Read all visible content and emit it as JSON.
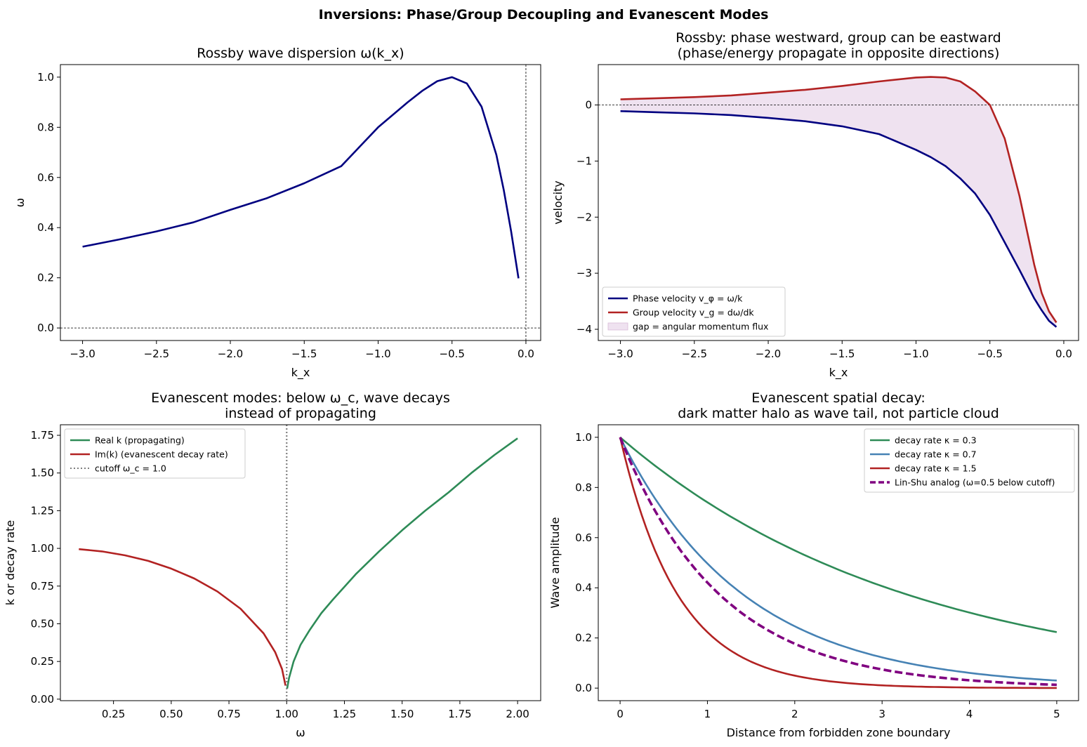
{
  "suptitle": "Inversions: Phase/Group Decoupling and Evanescent Modes",
  "chart_data": [
    {
      "type": "line",
      "title": "Rossby wave dispersion  ω(k_x)",
      "xlabel": "k_x",
      "ylabel": "ω",
      "xlim": [
        -3.15,
        0.1
      ],
      "ylim": [
        -0.05,
        1.05
      ],
      "xticks": [
        -3.0,
        -2.5,
        -2.0,
        -1.5,
        -1.0,
        -0.5,
        0.0
      ],
      "xtick_labels": [
        "−3.0",
        "−2.5",
        "−2.0",
        "−1.5",
        "−1.0",
        "−0.5",
        "0.0"
      ],
      "yticks": [
        0.0,
        0.2,
        0.4,
        0.6,
        0.8,
        1.0
      ],
      "ytick_labels": [
        "0.0",
        "0.2",
        "0.4",
        "0.6",
        "0.8",
        "1.0"
      ],
      "series": [
        {
          "name": "ω(k_x)",
          "color": "#000080",
          "x": [
            -3.0,
            -2.75,
            -2.5,
            -2.25,
            -2.0,
            -1.75,
            -1.5,
            -1.25,
            -1.0,
            -0.9,
            -0.8,
            -0.7,
            -0.6,
            -0.5,
            -0.4,
            -0.3,
            -0.2,
            -0.15,
            -0.1,
            -0.05
          ],
          "y": [
            0.324,
            0.353,
            0.385,
            0.421,
            0.471,
            0.518,
            0.577,
            0.645,
            0.8,
            0.85,
            0.9,
            0.946,
            0.984,
            1.0,
            0.975,
            0.882,
            0.69,
            0.55,
            0.385,
            0.198
          ]
        }
      ],
      "reference_lines": [
        {
          "axis": "y",
          "value": 0
        },
        {
          "axis": "x",
          "value": 0
        }
      ]
    },
    {
      "type": "line",
      "title": "Rossby: phase westward, group can be eastward",
      "subtitle": "(phase/energy propagate in opposite directions)",
      "xlabel": "k_x",
      "ylabel": "velocity",
      "xlim": [
        -3.15,
        0.1
      ],
      "ylim": [
        -4.2,
        0.72
      ],
      "xticks": [
        -3.0,
        -2.5,
        -2.0,
        -1.5,
        -1.0,
        -0.5,
        0.0
      ],
      "xtick_labels": [
        "−3.0",
        "−2.5",
        "−2.0",
        "−1.5",
        "−1.0",
        "−0.5",
        "0.0"
      ],
      "yticks": [
        -4,
        -3,
        -2,
        -1,
        0
      ],
      "ytick_labels": [
        "−4",
        "−3",
        "−2",
        "−1",
        "0"
      ],
      "series": [
        {
          "name": "Phase velocity v_φ = ω/k",
          "color": "#000080",
          "x": [
            -3.0,
            -2.75,
            -2.5,
            -2.25,
            -2.0,
            -1.75,
            -1.5,
            -1.25,
            -1.0,
            -0.9,
            -0.8,
            -0.7,
            -0.6,
            -0.5,
            -0.4,
            -0.3,
            -0.2,
            -0.15,
            -0.1,
            -0.05
          ],
          "y": [
            -0.11,
            -0.13,
            -0.15,
            -0.18,
            -0.23,
            -0.29,
            -0.38,
            -0.52,
            -0.8,
            -0.93,
            -1.09,
            -1.31,
            -1.58,
            -1.96,
            -2.45,
            -2.94,
            -3.45,
            -3.66,
            -3.85,
            -3.96
          ]
        },
        {
          "name": "Group velocity v_g = dω/dk",
          "color": "#b22222",
          "x": [
            -3.0,
            -2.75,
            -2.5,
            -2.25,
            -2.0,
            -1.75,
            -1.5,
            -1.25,
            -1.0,
            -0.9,
            -0.8,
            -0.7,
            -0.6,
            -0.5,
            -0.4,
            -0.3,
            -0.2,
            -0.15,
            -0.1,
            -0.05
          ],
          "y": [
            0.1,
            0.12,
            0.14,
            0.17,
            0.22,
            0.27,
            0.34,
            0.42,
            0.49,
            0.5,
            0.49,
            0.42,
            0.24,
            0.0,
            -0.6,
            -1.62,
            -2.85,
            -3.35,
            -3.68,
            -3.88
          ]
        }
      ],
      "fill_between": {
        "label": "gap = angular momentum flux",
        "color": "#efe2f0"
      },
      "legend": "lower-left",
      "reference_lines": [
        {
          "axis": "y",
          "value": 0
        }
      ]
    },
    {
      "type": "line",
      "title": "Evanescent modes: below ω_c, wave decays",
      "subtitle": "instead of propagating",
      "xlabel": "ω",
      "ylabel": "k  or  decay rate",
      "xlim": [
        0.02,
        2.1
      ],
      "ylim": [
        -0.01,
        1.82
      ],
      "xticks": [
        0.25,
        0.5,
        0.75,
        1.0,
        1.25,
        1.5,
        1.75,
        2.0
      ],
      "xtick_labels": [
        "0.25",
        "0.50",
        "0.75",
        "1.00",
        "1.25",
        "1.50",
        "1.75",
        "2.00"
      ],
      "yticks": [
        0.0,
        0.25,
        0.5,
        0.75,
        1.0,
        1.25,
        1.5,
        1.75
      ],
      "ytick_labels": [
        "0.00",
        "0.25",
        "0.50",
        "0.75",
        "1.00",
        "1.25",
        "1.50",
        "1.75"
      ],
      "series": [
        {
          "name": "Real k  (propagating)",
          "color": "#2e8b57",
          "x": [
            1.002,
            1.01,
            1.03,
            1.06,
            1.1,
            1.15,
            1.2,
            1.3,
            1.4,
            1.5,
            1.6,
            1.7,
            1.8,
            1.9,
            2.0
          ],
          "y": [
            0.07,
            0.14,
            0.25,
            0.36,
            0.46,
            0.57,
            0.66,
            0.83,
            0.98,
            1.12,
            1.25,
            1.37,
            1.5,
            1.62,
            1.73
          ]
        },
        {
          "name": "Im(k)  (evanescent decay rate)",
          "color": "#b22222",
          "x": [
            0.1,
            0.2,
            0.3,
            0.4,
            0.5,
            0.6,
            0.7,
            0.8,
            0.9,
            0.95,
            0.98,
            0.995
          ],
          "y": [
            0.995,
            0.98,
            0.954,
            0.917,
            0.866,
            0.8,
            0.714,
            0.6,
            0.436,
            0.312,
            0.199,
            0.09
          ]
        },
        {
          "name": "cutoff ω_c = 1.0",
          "color": "#808080",
          "dash": "dotted",
          "vertical_x": 1.0
        }
      ],
      "legend": "upper-left"
    },
    {
      "type": "line",
      "title": "Evanescent spatial decay:",
      "subtitle": "dark matter halo as wave tail, not particle cloud",
      "xlabel": "Distance from forbidden zone boundary",
      "ylabel": "Wave amplitude",
      "xlim": [
        -0.25,
        5.25
      ],
      "ylim": [
        -0.05,
        1.05
      ],
      "xticks": [
        0,
        1,
        2,
        3,
        4,
        5
      ],
      "xtick_labels": [
        "0",
        "1",
        "2",
        "3",
        "4",
        "5"
      ],
      "yticks": [
        0.0,
        0.2,
        0.4,
        0.6,
        0.8,
        1.0
      ],
      "ytick_labels": [
        "0.0",
        "0.2",
        "0.4",
        "0.6",
        "0.8",
        "1.0"
      ],
      "series": [
        {
          "name": "decay rate κ = 0.3",
          "color": "#2e8b57",
          "function": "exp(-0.3x)"
        },
        {
          "name": "decay rate κ = 0.7",
          "color": "#4682b4",
          "function": "exp(-0.7x)"
        },
        {
          "name": "decay rate κ = 1.5",
          "color": "#b22222",
          "function": "exp(-1.5x)"
        },
        {
          "name": "Lin-Shu analog  (ω=0.5 below cutoff)",
          "color": "#800080",
          "dash": "dashed",
          "function": "exp(-0.866x)"
        }
      ],
      "legend": "upper-right"
    }
  ]
}
